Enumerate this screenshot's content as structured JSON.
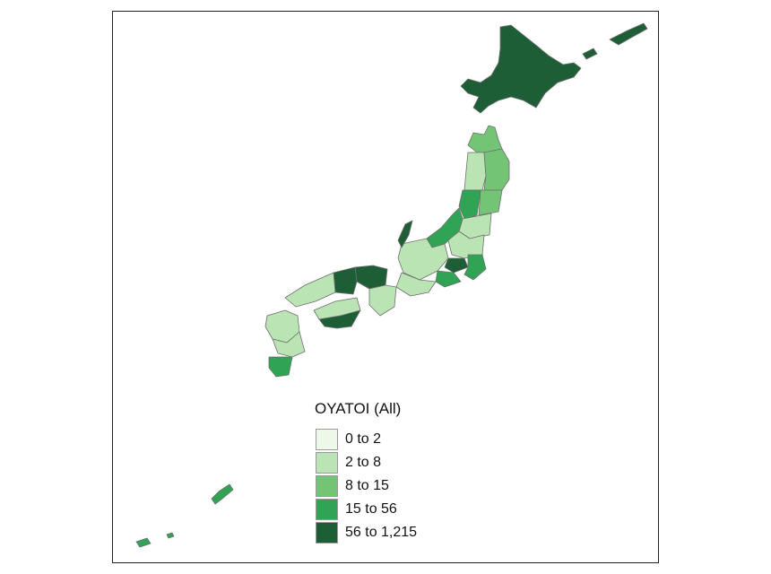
{
  "legend": {
    "title": "OYATOI (All)",
    "items": [
      {
        "label": "0 to 2",
        "color": "#edf8e9"
      },
      {
        "label": "2 to 8",
        "color": "#bae4b3"
      },
      {
        "label": "8 to 15",
        "color": "#74c476"
      },
      {
        "label": "15 to 56",
        "color": "#31a354"
      },
      {
        "label": "56 to 1,215",
        "color": "#1d5e36"
      }
    ]
  },
  "regions": [
    {
      "name": "Hokkaido",
      "class": 4
    },
    {
      "name": "Aomori",
      "class": 2
    },
    {
      "name": "Iwate",
      "class": 2
    },
    {
      "name": "Akita",
      "class": 1
    },
    {
      "name": "Miyagi",
      "class": 2
    },
    {
      "name": "Yamagata",
      "class": 3
    },
    {
      "name": "Fukushima",
      "class": 1
    },
    {
      "name": "Niigata",
      "class": 3
    },
    {
      "name": "Tokyo",
      "class": 4
    },
    {
      "name": "Kanagawa",
      "class": 3
    },
    {
      "name": "Chiba",
      "class": 3
    },
    {
      "name": "Ishikawa",
      "class": 4
    },
    {
      "name": "Kyoto",
      "class": 4
    },
    {
      "name": "Osaka",
      "class": 4
    },
    {
      "name": "Hyogo",
      "class": 4
    },
    {
      "name": "Kochi",
      "class": 4
    },
    {
      "name": "Kagoshima",
      "class": 3
    },
    {
      "name": "Okinawa",
      "class": 3
    }
  ]
}
